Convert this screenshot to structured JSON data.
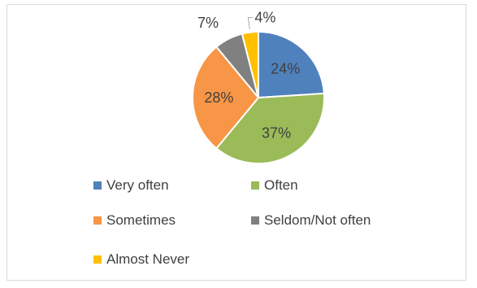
{
  "chart_data": {
    "type": "pie",
    "title": "",
    "slices": [
      {
        "label": "Very often",
        "value": 24,
        "display": "24%",
        "color": "#4f81bd"
      },
      {
        "label": "Often",
        "value": 37,
        "display": "37%",
        "color": "#9bbb59"
      },
      {
        "label": "Sometimes",
        "value": 28,
        "display": "28%",
        "color": "#f79646"
      },
      {
        "label": "Seldom/Not often",
        "value": 7,
        "display": "7%",
        "color": "#808080"
      },
      {
        "label": "Almost Never",
        "value": 4,
        "display": "4%",
        "color": "#ffc000"
      }
    ],
    "start_angle_deg": 0,
    "direction": "clockwise",
    "legend_position": "bottom"
  }
}
